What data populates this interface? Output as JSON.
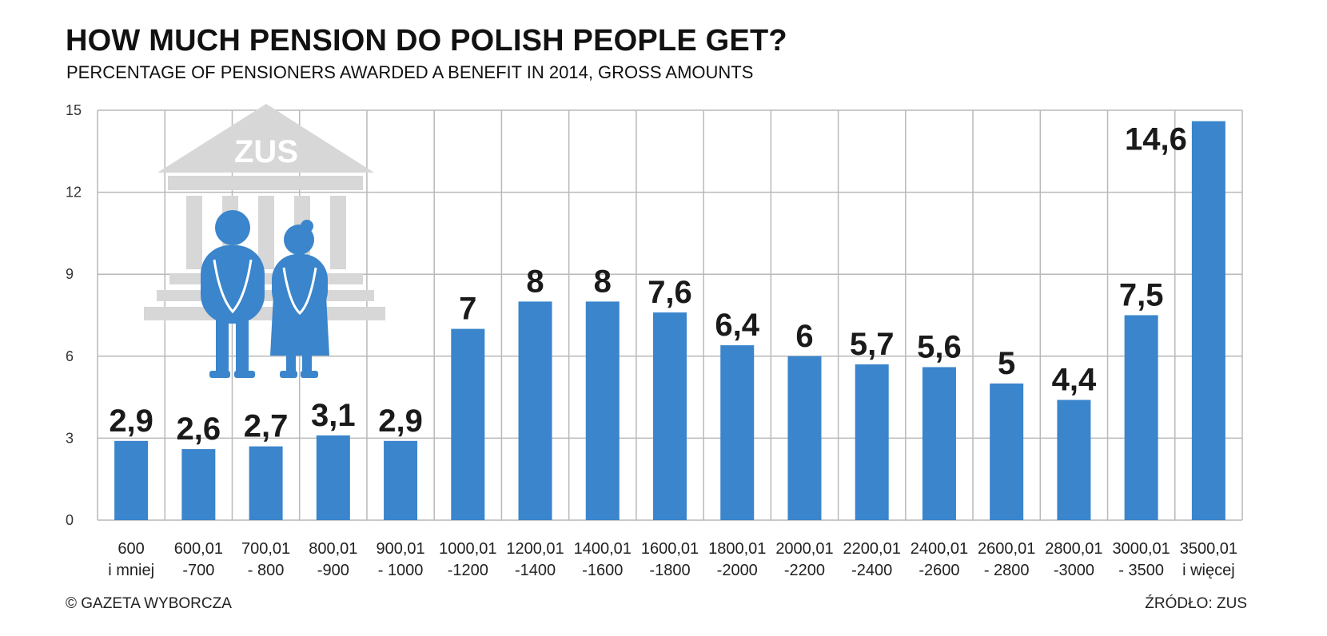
{
  "header": {
    "title": "HOW MUCH PENSION DO POLISH PEOPLE GET?",
    "subtitle": "PERCENTAGE OF PENSIONERS AWARDED A BENEFIT IN 2014, GROSS AMOUNTS"
  },
  "footer": {
    "credit": "© GAZETA WYBORCZA",
    "source": "ŹRÓDŁO: ZUS"
  },
  "illustration": {
    "building_label": "ZUS",
    "icon": "pension-building-with-pensioners"
  },
  "colors": {
    "bar": "#3a85cc",
    "grid": "#b9b9b9",
    "illustration_building": "#d7d7d7",
    "illustration_people": "#3a85cc"
  },
  "chart_data": {
    "type": "bar",
    "title": "HOW MUCH PENSION DO POLISH PEOPLE GET?",
    "subtitle": "PERCENTAGE OF PENSIONERS AWARDED A BENEFIT IN 2014, GROSS AMOUNTS",
    "xlabel": "",
    "ylabel": "",
    "ylim": [
      0,
      15
    ],
    "yticks": [
      0,
      3,
      6,
      9,
      12,
      15
    ],
    "grid": true,
    "categories": [
      [
        "600",
        "i mniej"
      ],
      [
        "600,01",
        "-700"
      ],
      [
        "700,01",
        "- 800"
      ],
      [
        "800,01",
        "-900"
      ],
      [
        "900,01",
        "- 1000"
      ],
      [
        "1000,01",
        "-1200"
      ],
      [
        "1200,01",
        "-1400"
      ],
      [
        "1400,01",
        "-1600"
      ],
      [
        "1600,01",
        "-1800"
      ],
      [
        "1800,01",
        "-2000"
      ],
      [
        "2000,01",
        "-2200"
      ],
      [
        "2200,01",
        "-2400"
      ],
      [
        "2400,01",
        "-2600"
      ],
      [
        "2600,01",
        "- 2800"
      ],
      [
        "2800,01",
        "-3000"
      ],
      [
        "3000,01",
        "- 3500"
      ],
      [
        "3500,01",
        "i więcej"
      ]
    ],
    "values": [
      2.9,
      2.6,
      2.7,
      3.1,
      2.9,
      7,
      8,
      8,
      7.6,
      6.4,
      6,
      5.7,
      5.6,
      5,
      4.4,
      7.5,
      14.6
    ],
    "value_labels": [
      "2,9",
      "2,6",
      "2,7",
      "3,1",
      "2,9",
      "7",
      "8",
      "8",
      "7,6",
      "6,4",
      "6",
      "5,7",
      "5,6",
      "5",
      "4,4",
      "7,5",
      "14,6"
    ]
  }
}
